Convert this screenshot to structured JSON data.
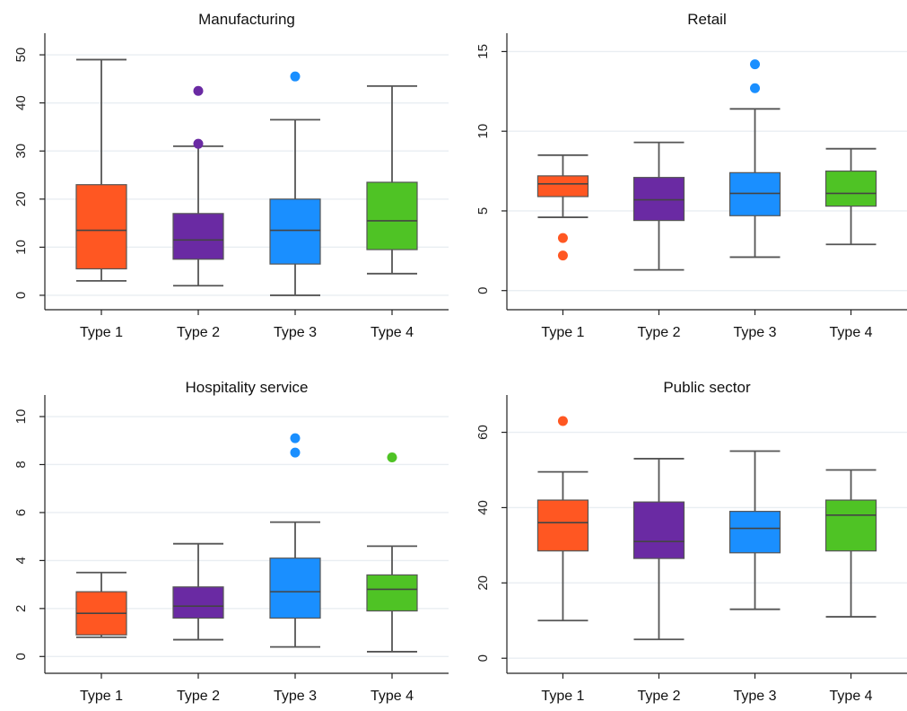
{
  "chart_data": [
    {
      "type": "box",
      "title": "Manufacturing",
      "categories": [
        "Type 1",
        "Type 2",
        "Type 3",
        "Type 4"
      ],
      "colors": [
        "#ff5722",
        "#6a2aa3",
        "#1a8fff",
        "#4fc325"
      ],
      "ylim": [
        -3,
        53
      ],
      "yticks": [
        0,
        10,
        20,
        30,
        40,
        50
      ],
      "grid": true,
      "boxes": [
        {
          "whisker_low": 3,
          "q1": 5.5,
          "median": 13.5,
          "q3": 23,
          "whisker_high": 49,
          "outliers": []
        },
        {
          "whisker_low": 2,
          "q1": 7.5,
          "median": 11.5,
          "q3": 17,
          "whisker_high": 31,
          "outliers": [
            31.5,
            42.5
          ]
        },
        {
          "whisker_low": 0,
          "q1": 6.5,
          "median": 13.5,
          "q3": 20,
          "whisker_high": 36.5,
          "outliers": [
            45.5
          ]
        },
        {
          "whisker_low": 4.5,
          "q1": 9.5,
          "median": 15.5,
          "q3": 23.5,
          "whisker_high": 43.5,
          "outliers": []
        }
      ]
    },
    {
      "type": "box",
      "title": "Retail",
      "categories": [
        "Type 1",
        "Type 2",
        "Type 3",
        "Type 4"
      ],
      "colors": [
        "#ff5722",
        "#6a2aa3",
        "#1a8fff",
        "#4fc325"
      ],
      "ylim": [
        -1.2,
        15.7
      ],
      "yticks": [
        0,
        5,
        10,
        15
      ],
      "grid": true,
      "boxes": [
        {
          "whisker_low": 4.6,
          "q1": 5.9,
          "median": 6.7,
          "q3": 7.2,
          "whisker_high": 8.5,
          "outliers": [
            3.3,
            2.2
          ]
        },
        {
          "whisker_low": 1.3,
          "q1": 4.4,
          "median": 5.7,
          "q3": 7.1,
          "whisker_high": 9.3,
          "outliers": []
        },
        {
          "whisker_low": 2.1,
          "q1": 4.7,
          "median": 6.1,
          "q3": 7.4,
          "whisker_high": 11.4,
          "outliers": [
            12.7,
            14.2
          ]
        },
        {
          "whisker_low": 2.9,
          "q1": 5.3,
          "median": 6.1,
          "q3": 7.5,
          "whisker_high": 8.9,
          "outliers": []
        }
      ]
    },
    {
      "type": "box",
      "title": "Hospitality service",
      "categories": [
        "Type 1",
        "Type 2",
        "Type 3",
        "Type 4"
      ],
      "colors": [
        "#ff5722",
        "#6a2aa3",
        "#1a8fff",
        "#4fc325"
      ],
      "ylim": [
        -0.7,
        10.6
      ],
      "yticks": [
        0,
        2,
        4,
        6,
        8,
        10
      ],
      "grid": true,
      "boxes": [
        {
          "whisker_low": 0.8,
          "q1": 0.9,
          "median": 1.8,
          "q3": 2.7,
          "whisker_high": 3.5,
          "outliers": []
        },
        {
          "whisker_low": 0.7,
          "q1": 1.6,
          "median": 2.1,
          "q3": 2.9,
          "whisker_high": 4.7,
          "outliers": []
        },
        {
          "whisker_low": 0.4,
          "q1": 1.6,
          "median": 2.7,
          "q3": 4.1,
          "whisker_high": 5.6,
          "outliers": [
            8.5,
            9.1
          ]
        },
        {
          "whisker_low": 0.2,
          "q1": 1.9,
          "median": 2.8,
          "q3": 3.4,
          "whisker_high": 4.6,
          "outliers": [
            8.3
          ]
        }
      ]
    },
    {
      "type": "box",
      "title": "Public sector",
      "categories": [
        "Type 1",
        "Type 2",
        "Type 3",
        "Type 4"
      ],
      "colors": [
        "#ff5722",
        "#6a2aa3",
        "#1a8fff",
        "#4fc325"
      ],
      "ylim": [
        -4,
        68
      ],
      "yticks": [
        0,
        20,
        40,
        60
      ],
      "grid": true,
      "boxes": [
        {
          "whisker_low": 10,
          "q1": 28.5,
          "median": 36,
          "q3": 42,
          "whisker_high": 49.5,
          "outliers": [
            63
          ]
        },
        {
          "whisker_low": 5,
          "q1": 26.5,
          "median": 31,
          "q3": 41.5,
          "whisker_high": 53,
          "outliers": []
        },
        {
          "whisker_low": 13,
          "q1": 28,
          "median": 34.5,
          "q3": 39,
          "whisker_high": 55,
          "outliers": []
        },
        {
          "whisker_low": 11,
          "q1": 28.5,
          "median": 38,
          "q3": 42,
          "whisker_high": 50,
          "outliers": []
        }
      ]
    }
  ]
}
